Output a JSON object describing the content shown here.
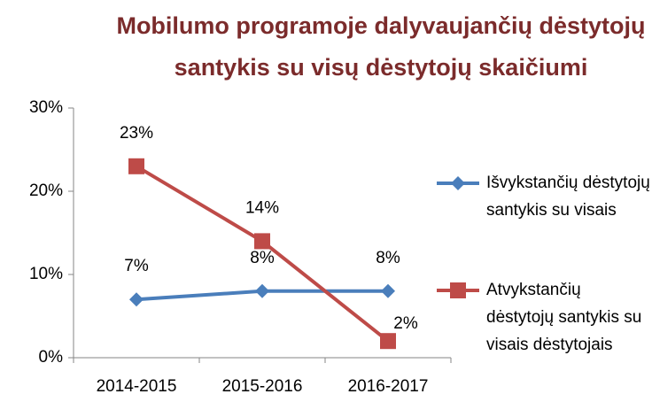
{
  "chart_data": {
    "type": "line",
    "title": "Mobilumo programoje dalyvaujančių dėstytojų santykis su visų dėstytojų skaičiumi",
    "categories": [
      "2014-2015",
      "2015-2016",
      "2016-2017"
    ],
    "series": [
      {
        "name": "Išvykstančių dėstytojų santykis su visais",
        "color": "#4a7ebb",
        "marker": "diamond",
        "values": [
          7,
          8,
          8
        ],
        "value_labels": [
          "7%",
          "8%",
          "8%"
        ]
      },
      {
        "name": "Atvykstančių dėstytojų santykis su visais dėstytojais",
        "color": "#be4b48",
        "marker": "square",
        "values": [
          23,
          14,
          2
        ],
        "value_labels": [
          "23%",
          "14%",
          "2%"
        ]
      }
    ],
    "ylim": [
      0,
      30
    ],
    "yticks": [
      {
        "value": 0,
        "label": "0%"
      },
      {
        "value": 10,
        "label": "10%"
      },
      {
        "value": 20,
        "label": "20%"
      },
      {
        "value": 30,
        "label": "30%"
      }
    ],
    "grid": false,
    "legend": "right"
  }
}
